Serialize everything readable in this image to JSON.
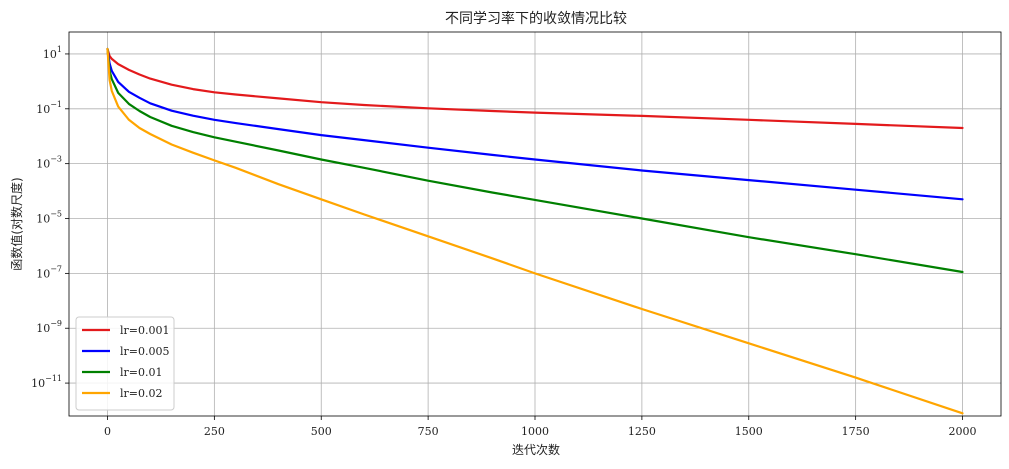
{
  "chart_data": {
    "type": "line",
    "title": "不同学习率下的收敛情况比较",
    "xlabel": "迭代次数",
    "ylabel": "函数值(对数尺度)",
    "yscale": "log",
    "xlim": [
      -90,
      2090
    ],
    "ylim_log10": [
      -12.2,
      1.8
    ],
    "xticks": [
      0,
      250,
      500,
      750,
      1000,
      1250,
      1500,
      1750,
      2000
    ],
    "yticks": [
      {
        "label": "10",
        "exp": "1"
      },
      {
        "label": "10",
        "exp": "−1"
      },
      {
        "label": "10",
        "exp": "−3"
      },
      {
        "label": "10",
        "exp": "−5"
      },
      {
        "label": "10",
        "exp": "−7"
      },
      {
        "label": "10",
        "exp": "−9"
      },
      {
        "label": "10",
        "exp": "−11"
      }
    ],
    "ytick_values_log10": [
      1,
      -1,
      -3,
      -5,
      -7,
      -9,
      -11
    ],
    "grid": true,
    "legend_position": "lower-left",
    "series": [
      {
        "name": "lr=0.001",
        "color": "#e31a1c",
        "x": [
          0,
          5,
          10,
          25,
          50,
          75,
          100,
          150,
          200,
          250,
          300,
          400,
          500,
          600,
          750,
          900,
          1000,
          1250,
          1500,
          1750,
          2000
        ],
        "log10_y": [
          1.18,
          0.92,
          0.82,
          0.63,
          0.42,
          0.25,
          0.1,
          -0.12,
          -0.28,
          -0.4,
          -0.48,
          -0.62,
          -0.76,
          -0.86,
          -0.98,
          -1.08,
          -1.14,
          -1.26,
          -1.4,
          -1.55,
          -1.7
        ]
      },
      {
        "name": "lr=0.005",
        "color": "#0000ff",
        "x": [
          0,
          5,
          10,
          25,
          50,
          75,
          100,
          150,
          200,
          250,
          300,
          400,
          500,
          600,
          750,
          900,
          1000,
          1250,
          1500,
          1750,
          2000
        ],
        "log10_y": [
          1.18,
          0.65,
          0.38,
          -0.02,
          -0.38,
          -0.6,
          -0.8,
          -1.07,
          -1.25,
          -1.4,
          -1.52,
          -1.74,
          -1.96,
          -2.14,
          -2.42,
          -2.68,
          -2.85,
          -3.25,
          -3.6,
          -3.95,
          -4.3
        ]
      },
      {
        "name": "lr=0.01",
        "color": "#008000",
        "x": [
          0,
          5,
          10,
          25,
          50,
          75,
          100,
          150,
          200,
          250,
          300,
          400,
          500,
          600,
          750,
          900,
          1000,
          1250,
          1500,
          1750,
          2000
        ],
        "log10_y": [
          1.18,
          0.38,
          0.08,
          -0.42,
          -0.82,
          -1.08,
          -1.3,
          -1.62,
          -1.85,
          -2.04,
          -2.2,
          -2.52,
          -2.85,
          -3.15,
          -3.62,
          -4.05,
          -4.32,
          -5.0,
          -5.68,
          -6.3,
          -6.95
        ]
      },
      {
        "name": "lr=0.02",
        "color": "#ffa500",
        "x": [
          0,
          5,
          10,
          25,
          50,
          75,
          100,
          150,
          200,
          250,
          300,
          400,
          500,
          600,
          750,
          900,
          1000,
          1250,
          1500,
          1750,
          2000
        ],
        "log10_y": [
          1.18,
          0.05,
          -0.35,
          -0.92,
          -1.4,
          -1.7,
          -1.92,
          -2.3,
          -2.6,
          -2.88,
          -3.15,
          -3.75,
          -4.3,
          -4.85,
          -5.65,
          -6.45,
          -7.0,
          -8.3,
          -9.55,
          -10.8,
          -12.1
        ]
      }
    ]
  }
}
